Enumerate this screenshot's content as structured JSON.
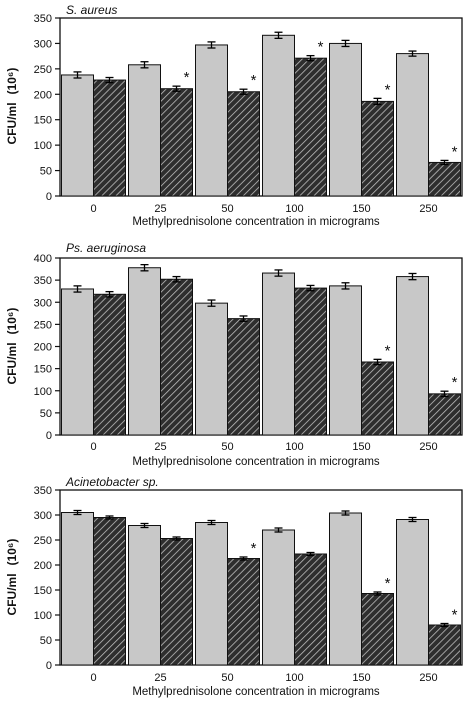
{
  "chart_data": [
    {
      "type": "bar",
      "title": "S. aureus",
      "xlabel": "Methylprednisolone concentration in micrograms",
      "ylabel": "CFU/ml",
      "ylabel_unit": "(10⁶)",
      "categories": [
        "0",
        "25",
        "50",
        "100",
        "150",
        "250"
      ],
      "ylim": [
        0,
        350
      ],
      "yticks": [
        0,
        50,
        100,
        150,
        200,
        250,
        300,
        350
      ],
      "series": [
        {
          "values": [
            238,
            258,
            297,
            316,
            300,
            280
          ],
          "errors": [
            6,
            6,
            6,
            6,
            6,
            5
          ],
          "fill": "#c8c8c8",
          "pattern": "solid"
        },
        {
          "values": [
            228,
            211,
            205,
            271,
            186,
            66
          ],
          "errors": [
            5,
            5,
            5,
            5,
            6,
            4
          ],
          "fill": "#3a3a3a",
          "pattern": "hatched"
        }
      ],
      "significant": [
        null,
        "*",
        "*",
        "*",
        "*",
        "*"
      ]
    },
    {
      "type": "bar",
      "title": "Ps. aeruginosa",
      "xlabel": "Methylprednisolone concentration in micrograms",
      "ylabel": "CFU/ml",
      "ylabel_unit": "(10⁶)",
      "categories": [
        "0",
        "25",
        "50",
        "100",
        "150",
        "250"
      ],
      "ylim": [
        0,
        400
      ],
      "yticks": [
        0,
        50,
        100,
        150,
        200,
        250,
        300,
        350,
        400
      ],
      "series": [
        {
          "values": [
            330,
            378,
            298,
            366,
            337,
            358
          ],
          "errors": [
            7,
            7,
            7,
            7,
            7,
            7
          ],
          "fill": "#c8c8c8",
          "pattern": "solid"
        },
        {
          "values": [
            318,
            352,
            263,
            332,
            165,
            93
          ],
          "errors": [
            6,
            6,
            6,
            6,
            6,
            6
          ],
          "fill": "#3a3a3a",
          "pattern": "hatched"
        }
      ],
      "significant": [
        null,
        null,
        null,
        null,
        "*",
        "*"
      ]
    },
    {
      "type": "bar",
      "title": "Acinetobacter sp.",
      "xlabel": "Methylprednisolone concentration in micrograms",
      "ylabel": "CFU/ml",
      "ylabel_unit": "(10⁶)",
      "categories": [
        "0",
        "25",
        "50",
        "100",
        "150",
        "250"
      ],
      "ylim": [
        0,
        350
      ],
      "yticks": [
        0,
        50,
        100,
        150,
        200,
        250,
        300,
        350
      ],
      "series": [
        {
          "values": [
            305,
            279,
            285,
            270,
            304,
            291
          ],
          "errors": [
            4,
            4,
            4,
            4,
            4,
            4
          ],
          "fill": "#c8c8c8",
          "pattern": "solid"
        },
        {
          "values": [
            295,
            253,
            213,
            222,
            143,
            80
          ],
          "errors": [
            3,
            3,
            3,
            3,
            3,
            3
          ],
          "fill": "#3a3a3a",
          "pattern": "hatched"
        }
      ],
      "significant": [
        null,
        null,
        "*",
        null,
        "*",
        "*"
      ]
    }
  ]
}
